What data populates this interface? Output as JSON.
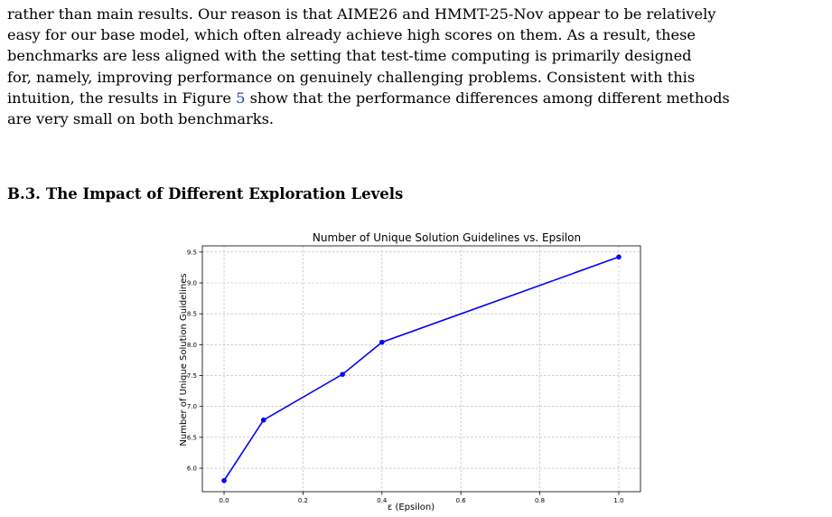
{
  "paragraph": {
    "line1_before": "rather than main results. Our reason is that AIME26 and HMMT-25-Nov appear to be relatively",
    "line2": "easy for our base model, which often already achieve high scores on them. As a result, these",
    "line3": "benchmarks are less aligned with the setting that test-time computing is primarily designed",
    "line4": "for, namely, improving performance on genuinely challenging problems. Consistent with this",
    "line5_before": "intuition, the results in Figure ",
    "line5_ref": "5",
    "line5_after": " show that the performance differences among different methods",
    "line6": "are very small on both benchmarks."
  },
  "section": {
    "number": "B.3.",
    "title": "The Impact of Different Exploration Levels"
  },
  "chart_data": {
    "type": "line",
    "title": "Number of Unique Solution Guidelines vs. Epsilon",
    "xlabel": "ε (Epsilon)",
    "ylabel": "Number of Unique Solution Guidelines",
    "x": [
      0.0,
      0.1,
      0.3,
      0.4,
      1.0
    ],
    "y": [
      5.8,
      6.78,
      7.52,
      8.04,
      9.42
    ],
    "xlim": [
      -0.055,
      1.055
    ],
    "ylim": [
      5.62,
      9.6
    ],
    "xticks": [
      0.0,
      0.2,
      0.4,
      0.6,
      0.8,
      1.0
    ],
    "xtick_labels": [
      "0.0",
      "0.2",
      "0.4",
      "0.6",
      "0.8",
      "1.0"
    ],
    "yticks": [
      6.0,
      6.5,
      7.0,
      7.5,
      8.0,
      8.5,
      9.0,
      9.5
    ],
    "ytick_labels": [
      "6.0",
      "6.5",
      "7.0",
      "7.5",
      "8.0",
      "8.5",
      "9.0",
      "9.5"
    ],
    "grid": true,
    "line_color": "#0000ff"
  }
}
